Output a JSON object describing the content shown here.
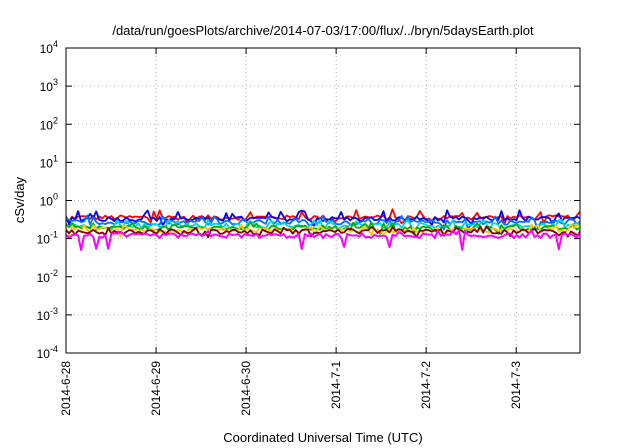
{
  "chart_data": {
    "type": "line",
    "title": "/data/run/goesPlots/archive/2014-07-03/17:00/flux/../bryn/5daysEarth.plot",
    "xlabel": "Coordinated Universal Time (UTC)",
    "ylabel": "cSv/day",
    "yscale": "log",
    "ylim": [
      0.0001,
      10000
    ],
    "xlim": [
      "2014-06-28",
      "2014-07-03T17:00"
    ],
    "grid": true,
    "y_ticks": [
      {
        "base": "10",
        "exp": "-4"
      },
      {
        "base": "10",
        "exp": "-3"
      },
      {
        "base": "10",
        "exp": "-2"
      },
      {
        "base": "10",
        "exp": "-1"
      },
      {
        "base": "10",
        "exp": "0"
      },
      {
        "base": "10",
        "exp": "1"
      },
      {
        "base": "10",
        "exp": "2"
      },
      {
        "base": "10",
        "exp": "3"
      },
      {
        "base": "10",
        "exp": "4"
      }
    ],
    "x_ticks": [
      "2014-6-28",
      "2014-6-29",
      "2014-6-30",
      "2014-7-1",
      "2014-7-2",
      "2014-7-3"
    ],
    "series": [
      {
        "color": "#ff0000",
        "base": 0.36,
        "spike": 1.45,
        "dip": 0.75
      },
      {
        "color": "#0000ff",
        "base": 0.33,
        "spike": 1.5,
        "dip": 0.7
      },
      {
        "color": "#0070ff",
        "base": 0.27,
        "spike": 1.35,
        "dip": 0.7
      },
      {
        "color": "#00d7d7",
        "base": 0.22,
        "spike": 1.3,
        "dip": 0.75
      },
      {
        "color": "#00b000",
        "base": 0.19,
        "spike": 1.25,
        "dip": 0.75
      },
      {
        "color": "#ffc800",
        "base": 0.17,
        "spike": 1.25,
        "dip": 0.75
      },
      {
        "color": "#800000",
        "base": 0.155,
        "spike": 1.2,
        "dip": 0.8
      },
      {
        "color": "#ff00ff",
        "base": 0.12,
        "spike": 1.2,
        "dip": 0.45
      }
    ]
  }
}
